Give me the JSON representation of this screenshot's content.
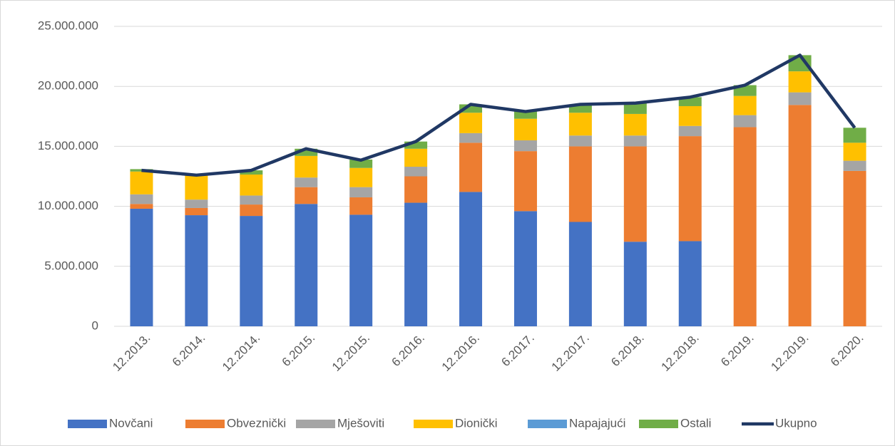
{
  "chart_data": {
    "type": "bar",
    "categories": [
      "12.2013.",
      "6.2014.",
      "12.2014.",
      "6.2015.",
      "12.2015.",
      "6.2016.",
      "12.2016.",
      "6.2017.",
      "12.2017.",
      "6.2018.",
      "12.2018.",
      "6.2019.",
      "12.2019.",
      "6.2020."
    ],
    "series": [
      {
        "name": "Novčani",
        "color": "#4472c4",
        "values": [
          9800000,
          9260000,
          9200000,
          10200000,
          9300000,
          10300000,
          11200000,
          9600000,
          8700000,
          7050000,
          7100000,
          0,
          0,
          0
        ]
      },
      {
        "name": "Obveznički",
        "color": "#ed7d31",
        "values": [
          400000,
          600000,
          950000,
          1400000,
          1450000,
          2200000,
          4100000,
          5000000,
          6300000,
          7950000,
          8750000,
          16600000,
          18450000,
          12950000
        ]
      },
      {
        "name": "Mješoviti",
        "color": "#a5a5a5",
        "values": [
          800000,
          700000,
          750000,
          800000,
          850000,
          800000,
          800000,
          900000,
          900000,
          900000,
          850000,
          1000000,
          1050000,
          850000
        ]
      },
      {
        "name": "Dionički",
        "color": "#ffc000",
        "values": [
          1900000,
          2100000,
          1750000,
          1800000,
          1600000,
          1500000,
          1700000,
          1800000,
          1900000,
          1800000,
          1650000,
          1600000,
          1750000,
          1500000
        ]
      },
      {
        "name": "Napajajući",
        "color": "#5b9bd5",
        "values": [
          0,
          0,
          0,
          0,
          0,
          0,
          0,
          0,
          0,
          0,
          0,
          0,
          0,
          0
        ]
      },
      {
        "name": "Ostali",
        "color": "#70ad47",
        "values": [
          200000,
          50000,
          350000,
          600000,
          700000,
          600000,
          700000,
          700000,
          700000,
          900000,
          750000,
          900000,
          1350000,
          1250000
        ]
      },
      {
        "name": "Ukupno",
        "color": "#203864",
        "type": "line",
        "values": [
          13000000,
          12600000,
          13000000,
          14800000,
          13850000,
          15400000,
          18500000,
          17900000,
          18500000,
          18600000,
          19100000,
          20100000,
          22600000,
          16550000
        ]
      }
    ],
    "ylim": [
      0,
      25000000
    ],
    "yticks": [
      0,
      {
        "value": 5000000,
        "label": "5.000.000"
      },
      {
        "value": 10000000,
        "label": "10.000.000"
      },
      {
        "value": 15000000,
        "label": "15.000.000"
      },
      {
        "value": 20000000,
        "label": "20.000.000"
      },
      {
        "value": 25000000,
        "label": "25.000.000"
      }
    ],
    "grid": true,
    "legend": "bottom"
  }
}
